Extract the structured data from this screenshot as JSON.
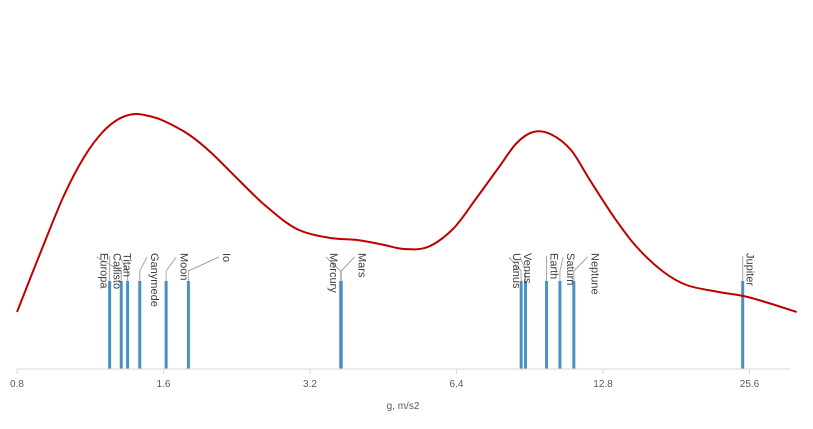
{
  "chart_data": {
    "type": "bar",
    "xscale": "log2",
    "xlabel": "g, m/s2",
    "xlim": [
      0.8,
      34
    ],
    "xticks": [
      0.8,
      1.6,
      3.2,
      6.4,
      12.8,
      25.6
    ],
    "xtick_labels": [
      "0.8",
      "1.6",
      "3.2",
      "6.4",
      "12.8",
      "25.6"
    ],
    "grid": false,
    "legend": "none",
    "bars": [
      {
        "label": "Callisto",
        "g": 1.24,
        "label_g": 1.24
      },
      {
        "label": "Europa",
        "g": 1.31,
        "label_g": 1.165
      },
      {
        "label": "Titan",
        "g": 1.35,
        "label_g": 1.3
      },
      {
        "label": "Ganymede",
        "g": 1.43,
        "label_g": 1.48
      },
      {
        "label": "Moon",
        "g": 1.62,
        "label_g": 1.7
      },
      {
        "label": "Io",
        "g": 1.8,
        "label_g": 2.08
      },
      {
        "label": "Mercury",
        "g": 3.7,
        "label_g": 3.45
      },
      {
        "label": "Mars",
        "g": 3.71,
        "label_g": 3.95
      },
      {
        "label": "Uranus",
        "g": 8.69,
        "label_g": 8.2
      },
      {
        "label": "Venus",
        "g": 8.87,
        "label_g": 8.65
      },
      {
        "label": "Earth",
        "g": 9.8,
        "label_g": 9.8
      },
      {
        "label": "Saturn",
        "g": 10.44,
        "label_g": 10.6
      },
      {
        "label": "Neptune",
        "g": 11.15,
        "label_g": 11.9
      },
      {
        "label": "Jupiter",
        "g": 24.79,
        "label_g": 24.79
      }
    ],
    "density_curve": {
      "x": [
        0.8,
        0.9,
        1.0,
        1.1,
        1.2,
        1.3,
        1.4,
        1.5,
        1.6,
        1.8,
        2.0,
        2.3,
        2.6,
        3.0,
        3.5,
        4.0,
        4.5,
        5.0,
        5.6,
        6.3,
        7.0,
        7.8,
        8.5,
        9.2,
        10.0,
        11.0,
        12.0,
        13.5,
        15.0,
        17.0,
        19.0,
        22.0,
        25.0,
        28.0,
        32.0
      ],
      "y": [
        0.08,
        0.36,
        0.6,
        0.77,
        0.88,
        0.94,
        0.96,
        0.95,
        0.93,
        0.87,
        0.79,
        0.66,
        0.55,
        0.45,
        0.41,
        0.4,
        0.38,
        0.36,
        0.37,
        0.45,
        0.58,
        0.72,
        0.83,
        0.88,
        0.87,
        0.8,
        0.67,
        0.5,
        0.37,
        0.26,
        0.2,
        0.17,
        0.15,
        0.12,
        0.08
      ]
    }
  }
}
